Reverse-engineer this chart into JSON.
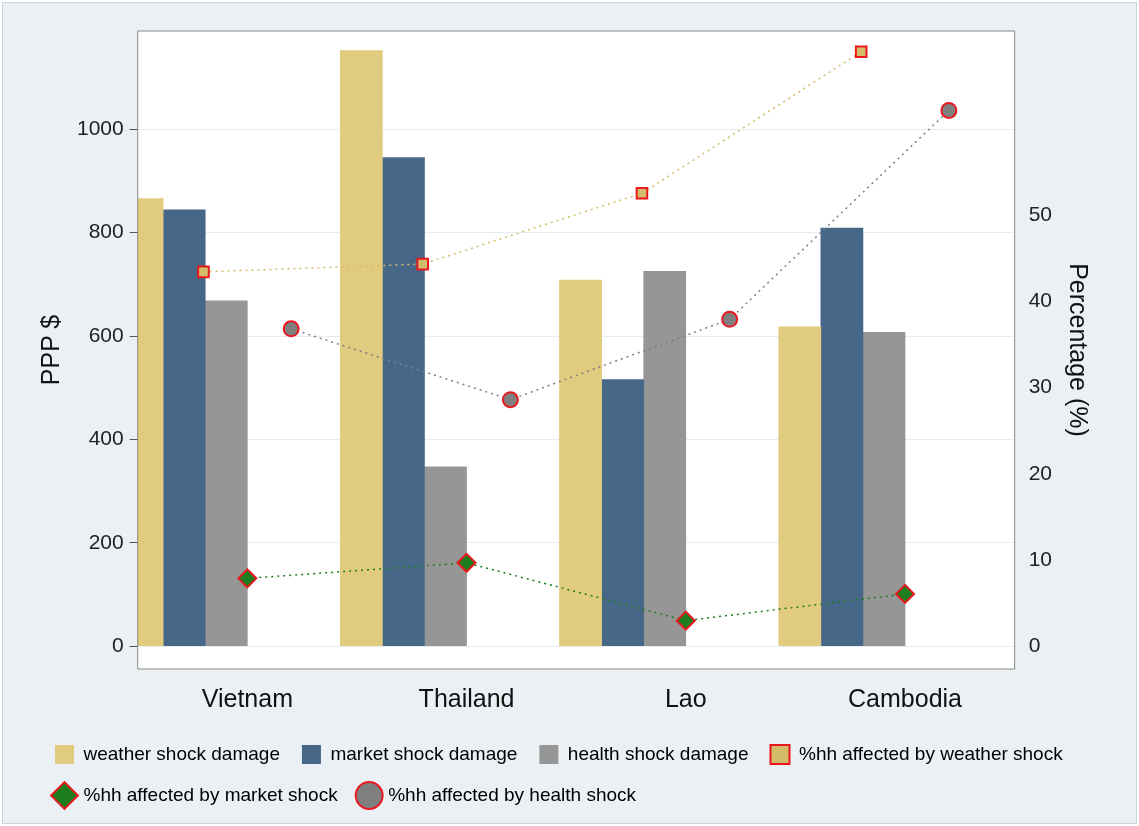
{
  "chart_data": {
    "type": "bar",
    "categories": [
      "Vietnam",
      "Thailand",
      "Lao",
      "Cambodia"
    ],
    "ylabel": "PPP $",
    "y2label": "Percentage (%)",
    "ylim": [
      -44,
      1190
    ],
    "yticks": [
      0,
      200,
      400,
      600,
      800,
      1000
    ],
    "y2lim": [
      -2.6,
      71.3
    ],
    "y2ticks": [
      0,
      10,
      20,
      30,
      40,
      50
    ],
    "grid": "y",
    "legend": "bottom",
    "line_style": "dotted",
    "series": [
      {
        "name": "weather shock damage",
        "color": "#e0cb7e",
        "values": [
          866,
          1152,
          708,
          618
        ]
      },
      {
        "name": "market shock damage",
        "color": "#476788",
        "values": [
          844,
          945,
          516,
          809
        ]
      },
      {
        "name": "health shock damage",
        "color": "#969696",
        "values": [
          668,
          347,
          725,
          607
        ]
      },
      {
        "name": "%hh affected by weather shock",
        "type": "line",
        "axis": "y2",
        "marker": "square",
        "color": "#d4bc6a",
        "values": [
          43.4,
          44.3,
          52.5,
          68.9
        ]
      },
      {
        "name": "%hh affected by market shock",
        "type": "line",
        "axis": "y2",
        "marker": "diamond",
        "color": "#1e7d1e",
        "values": [
          7.9,
          9.7,
          3.0,
          6.1
        ]
      },
      {
        "name": "%hh affected by health shock",
        "type": "line",
        "axis": "y2",
        "marker": "circle",
        "color": "#7f7f7f",
        "values": [
          36.8,
          28.6,
          37.9,
          62.1
        ]
      }
    ]
  }
}
